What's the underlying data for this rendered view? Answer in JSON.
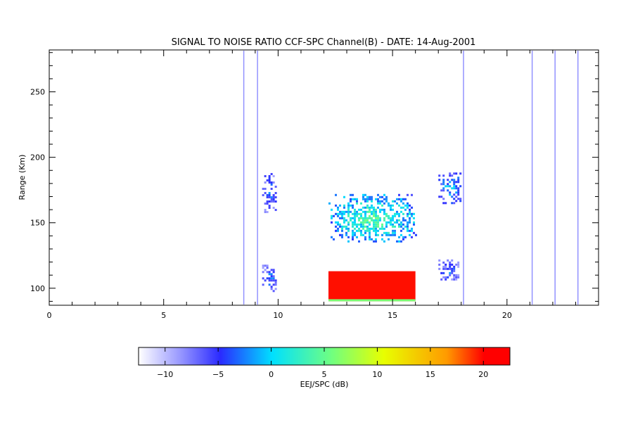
{
  "chart_data": {
    "type": "heatmap",
    "title": "SIGNAL TO NOISE RATIO CCF-SPC Channel(B) - DATE: 14-Aug-2001",
    "xlabel": "",
    "ylabel": "Range (Km)",
    "xlim": [
      0,
      24
    ],
    "ylim": [
      87,
      282
    ],
    "x_ticks": [
      0,
      5,
      10,
      15,
      20
    ],
    "y_ticks": [
      100,
      150,
      200,
      250
    ],
    "grid": false,
    "colorbar": {
      "label": "EEJ/SPC (dB)",
      "range": [
        -12.5,
        22.5
      ],
      "ticks": [
        -10,
        -5,
        0,
        5,
        10,
        15,
        20
      ],
      "colormap": [
        "#ffffff",
        "#9a9aff",
        "#2a2aff",
        "#00e0ff",
        "#70ff80",
        "#e8ff00",
        "#ff9a00",
        "#ff0000"
      ]
    },
    "regions": [
      {
        "name": "echo-9.6h-upper",
        "x": [
          9.3,
          9.9
        ],
        "y": [
          158,
          188
        ],
        "snr_db": -4
      },
      {
        "name": "echo-9.6h-lower",
        "x": [
          9.3,
          9.9
        ],
        "y": [
          98,
          118
        ],
        "snr_db": -4
      },
      {
        "name": "esf-plume-12-16h",
        "x": [
          12.2,
          16.0
        ],
        "y": [
          135,
          172
        ],
        "snr_db": 2
      },
      {
        "name": "eej-strong-12-16h",
        "x": [
          12.2,
          16.0
        ],
        "y": [
          90,
          113
        ],
        "snr_db": 22
      },
      {
        "name": "echo-17.6h-upper",
        "x": [
          17.0,
          18.0
        ],
        "y": [
          165,
          190
        ],
        "snr_db": -2
      },
      {
        "name": "echo-17.6h-lower",
        "x": [
          17.0,
          17.9
        ],
        "y": [
          106,
          122
        ],
        "snr_db": -5
      }
    ],
    "vertical_streaks_hours": [
      8.5,
      9.1,
      18.1,
      21.1,
      22.1,
      23.1
    ]
  }
}
